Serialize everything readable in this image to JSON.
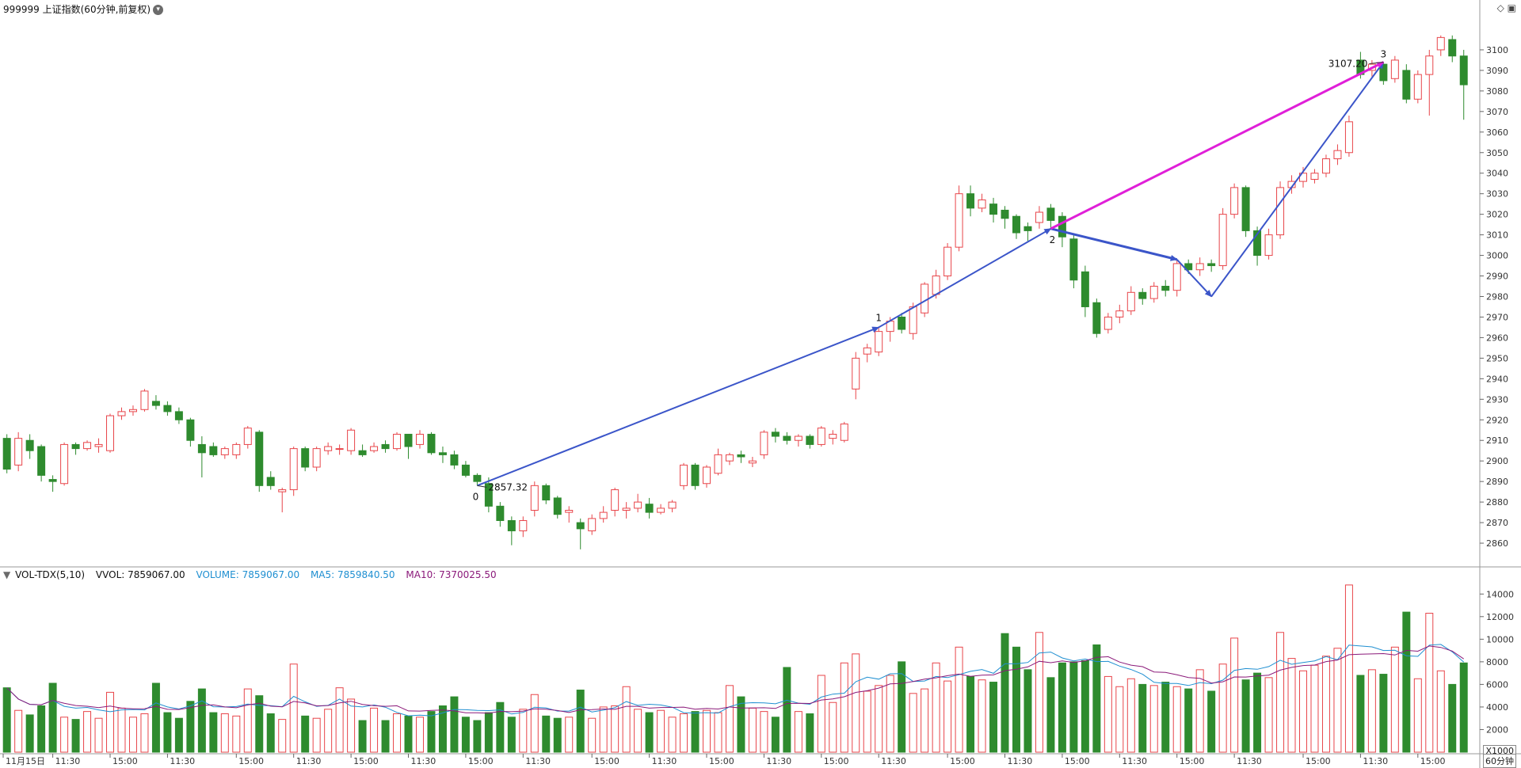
{
  "header": {
    "title": "999999 上证指数(60分钟,前复权)",
    "menu_icon": "chevron-down-icon",
    "tool_icons": [
      "diamond-icon",
      "panel-icon"
    ]
  },
  "volume_header": {
    "indicator": "VOL-TDX(5,10)",
    "vvol": "VVOL: 7859067.00",
    "volume": "VOLUME: 7859067.00",
    "ma5": "MA5: 7859840.50",
    "ma10": "MA10: 7370025.50"
  },
  "colors": {
    "up": "#e8454a",
    "down": "#2e8b2e",
    "wave": "#3b55c9",
    "channel": "#e01fd8",
    "ma5": "#1f8fd1",
    "ma10": "#8b1a7a",
    "grid": "#d8d8d8",
    "axis_text": "#333333"
  },
  "chart_data": {
    "type": "candlestick",
    "price_ylim": [
      2850,
      3115
    ],
    "price_ticks": [
      2860,
      2870,
      2880,
      2890,
      2900,
      2910,
      2920,
      2930,
      2940,
      2950,
      2960,
      2970,
      2980,
      2990,
      3000,
      3010,
      3020,
      3030,
      3040,
      3050,
      3060,
      3070,
      3080,
      3090,
      3100
    ],
    "volume_ylim": [
      0,
      15000
    ],
    "volume_ticks": [
      2000,
      4000,
      6000,
      8000,
      10000,
      12000,
      14000
    ],
    "volume_unit": "X1000",
    "period_label": "60分钟",
    "x_labels": [
      "11月15日",
      "11:30",
      "15:00",
      "11:30",
      "15:00",
      "11:30",
      "15:00",
      "11:30",
      "15:00",
      "11:30",
      "15:00",
      "11:30",
      "15:00",
      "11:30",
      "15:00",
      "11:30",
      "15:00",
      "11:30",
      "15:00",
      "11:30",
      "15:00",
      "11:30",
      "15:00",
      "11:30",
      "15:00"
    ],
    "annotations": [
      {
        "label": "0",
        "value": "2857.32",
        "bar": 41
      },
      {
        "label": "1",
        "bar": 76
      },
      {
        "label": "2",
        "bar": 91
      },
      {
        "label": "3",
        "value": "3107.20",
        "bar": 120
      }
    ],
    "candles": [
      {
        "o": 2911,
        "c": 2896,
        "h": 2913,
        "l": 2894,
        "v": 5700
      },
      {
        "o": 2898,
        "c": 2911,
        "h": 2914,
        "l": 2895,
        "v": 3700
      },
      {
        "o": 2910,
        "c": 2905,
        "h": 2913,
        "l": 2901,
        "v": 3300
      },
      {
        "o": 2907,
        "c": 2893,
        "h": 2908,
        "l": 2890,
        "v": 4100
      },
      {
        "o": 2891,
        "c": 2890,
        "h": 2893,
        "l": 2885,
        "v": 6100
      },
      {
        "o": 2889,
        "c": 2908,
        "h": 2909,
        "l": 2888,
        "v": 3100
      },
      {
        "o": 2908,
        "c": 2906,
        "h": 2909,
        "l": 2903,
        "v": 2900
      },
      {
        "o": 2906,
        "c": 2909,
        "h": 2910,
        "l": 2905,
        "v": 3600
      },
      {
        "o": 2907,
        "c": 2908,
        "h": 2911,
        "l": 2904,
        "v": 3000
      },
      {
        "o": 2905,
        "c": 2922,
        "h": 2923,
        "l": 2904,
        "v": 5300
      },
      {
        "o": 2922,
        "c": 2924,
        "h": 2926,
        "l": 2920,
        "v": 3900
      },
      {
        "o": 2924,
        "c": 2925,
        "h": 2927,
        "l": 2922,
        "v": 3100
      },
      {
        "o": 2925,
        "c": 2934,
        "h": 2935,
        "l": 2924,
        "v": 3400
      },
      {
        "o": 2929,
        "c": 2927,
        "h": 2932,
        "l": 2925,
        "v": 6100
      },
      {
        "o": 2927,
        "c": 2924,
        "h": 2929,
        "l": 2922,
        "v": 3500
      },
      {
        "o": 2924,
        "c": 2920,
        "h": 2926,
        "l": 2918,
        "v": 3000
      },
      {
        "o": 2920,
        "c": 2910,
        "h": 2921,
        "l": 2907,
        "v": 4500
      },
      {
        "o": 2908,
        "c": 2904,
        "h": 2912,
        "l": 2892,
        "v": 5600
      },
      {
        "o": 2907,
        "c": 2903,
        "h": 2909,
        "l": 2902,
        "v": 3500
      },
      {
        "o": 2903,
        "c": 2906,
        "h": 2907,
        "l": 2901,
        "v": 3400
      },
      {
        "o": 2903,
        "c": 2908,
        "h": 2909,
        "l": 2901,
        "v": 3200
      },
      {
        "o": 2908,
        "c": 2916,
        "h": 2917,
        "l": 2906,
        "v": 5600
      },
      {
        "o": 2914,
        "c": 2888,
        "h": 2915,
        "l": 2885,
        "v": 5000
      },
      {
        "o": 2892,
        "c": 2888,
        "h": 2895,
        "l": 2886,
        "v": 3400
      },
      {
        "o": 2885,
        "c": 2886,
        "h": 2887,
        "l": 2875,
        "v": 2900
      },
      {
        "o": 2886,
        "c": 2906,
        "h": 2907,
        "l": 2883,
        "v": 7800
      },
      {
        "o": 2906,
        "c": 2897,
        "h": 2907,
        "l": 2895,
        "v": 3200
      },
      {
        "o": 2897,
        "c": 2906,
        "h": 2907,
        "l": 2895,
        "v": 3000
      },
      {
        "o": 2905,
        "c": 2907,
        "h": 2909,
        "l": 2903,
        "v": 3800
      },
      {
        "o": 2906,
        "c": 2906,
        "h": 2908,
        "l": 2903,
        "v": 5700
      },
      {
        "o": 2905,
        "c": 2915,
        "h": 2916,
        "l": 2903,
        "v": 4700
      },
      {
        "o": 2905,
        "c": 2903,
        "h": 2908,
        "l": 2902,
        "v": 2800
      },
      {
        "o": 2905,
        "c": 2907,
        "h": 2909,
        "l": 2904,
        "v": 3900
      },
      {
        "o": 2908,
        "c": 2906,
        "h": 2910,
        "l": 2904,
        "v": 2800
      },
      {
        "o": 2906,
        "c": 2913,
        "h": 2914,
        "l": 2905,
        "v": 3400
      },
      {
        "o": 2913,
        "c": 2907,
        "h": 2913,
        "l": 2901,
        "v": 3200
      },
      {
        "o": 2908,
        "c": 2913,
        "h": 2915,
        "l": 2906,
        "v": 3100
      },
      {
        "o": 2913,
        "c": 2904,
        "h": 2914,
        "l": 2903,
        "v": 3600
      },
      {
        "o": 2904,
        "c": 2903,
        "h": 2907,
        "l": 2899,
        "v": 4100
      },
      {
        "o": 2903,
        "c": 2898,
        "h": 2905,
        "l": 2896,
        "v": 4900
      },
      {
        "o": 2898,
        "c": 2893,
        "h": 2900,
        "l": 2892,
        "v": 3100
      },
      {
        "o": 2893,
        "c": 2890,
        "h": 2894,
        "l": 2888,
        "v": 2800
      },
      {
        "o": 2889,
        "c": 2878,
        "h": 2892,
        "l": 2875,
        "v": 3500
      },
      {
        "o": 2878,
        "c": 2871,
        "h": 2880,
        "l": 2868,
        "v": 4400
      },
      {
        "o": 2871,
        "c": 2866,
        "h": 2873,
        "l": 2859,
        "v": 3100
      },
      {
        "o": 2866,
        "c": 2871,
        "h": 2873,
        "l": 2863,
        "v": 3800
      },
      {
        "o": 2876,
        "c": 2888,
        "h": 2890,
        "l": 2873,
        "v": 5100
      },
      {
        "o": 2888,
        "c": 2881,
        "h": 2889,
        "l": 2879,
        "v": 3200
      },
      {
        "o": 2882,
        "c": 2874,
        "h": 2883,
        "l": 2872,
        "v": 3000
      },
      {
        "o": 2875,
        "c": 2876,
        "h": 2878,
        "l": 2870,
        "v": 3100
      },
      {
        "o": 2870,
        "c": 2867,
        "h": 2872,
        "l": 2857,
        "v": 5500
      },
      {
        "o": 2866,
        "c": 2872,
        "h": 2874,
        "l": 2864,
        "v": 3000
      },
      {
        "o": 2872,
        "c": 2875,
        "h": 2878,
        "l": 2870,
        "v": 4000
      },
      {
        "o": 2876,
        "c": 2886,
        "h": 2887,
        "l": 2873,
        "v": 4100
      },
      {
        "o": 2876,
        "c": 2877,
        "h": 2880,
        "l": 2872,
        "v": 5800
      },
      {
        "o": 2877,
        "c": 2880,
        "h": 2884,
        "l": 2875,
        "v": 3800
      },
      {
        "o": 2879,
        "c": 2875,
        "h": 2882,
        "l": 2872,
        "v": 3500
      },
      {
        "o": 2875,
        "c": 2877,
        "h": 2879,
        "l": 2874,
        "v": 3700
      },
      {
        "o": 2877,
        "c": 2880,
        "h": 2881,
        "l": 2875,
        "v": 3100
      },
      {
        "o": 2888,
        "c": 2898,
        "h": 2899,
        "l": 2886,
        "v": 3400
      },
      {
        "o": 2898,
        "c": 2888,
        "h": 2899,
        "l": 2886,
        "v": 3600
      },
      {
        "o": 2889,
        "c": 2897,
        "h": 2898,
        "l": 2887,
        "v": 3700
      },
      {
        "o": 2894,
        "c": 2903,
        "h": 2906,
        "l": 2893,
        "v": 3500
      },
      {
        "o": 2900,
        "c": 2903,
        "h": 2904,
        "l": 2898,
        "v": 5900
      },
      {
        "o": 2903,
        "c": 2902,
        "h": 2905,
        "l": 2899,
        "v": 4900
      },
      {
        "o": 2899,
        "c": 2900,
        "h": 2902,
        "l": 2897,
        "v": 3900
      },
      {
        "o": 2903,
        "c": 2914,
        "h": 2915,
        "l": 2901,
        "v": 3600
      },
      {
        "o": 2914,
        "c": 2912,
        "h": 2916,
        "l": 2909,
        "v": 3100
      },
      {
        "o": 2912,
        "c": 2910,
        "h": 2914,
        "l": 2908,
        "v": 7500
      },
      {
        "o": 2910,
        "c": 2912,
        "h": 2913,
        "l": 2907,
        "v": 3600
      },
      {
        "o": 2912,
        "c": 2908,
        "h": 2913,
        "l": 2906,
        "v": 3400
      },
      {
        "o": 2908,
        "c": 2916,
        "h": 2917,
        "l": 2907,
        "v": 6800
      },
      {
        "o": 2911,
        "c": 2913,
        "h": 2915,
        "l": 2908,
        "v": 4400
      },
      {
        "o": 2910,
        "c": 2918,
        "h": 2919,
        "l": 2909,
        "v": 7900
      },
      {
        "o": 2935,
        "c": 2950,
        "h": 2953,
        "l": 2930,
        "v": 8700
      },
      {
        "o": 2952,
        "c": 2955,
        "h": 2957,
        "l": 2948,
        "v": 5400
      },
      {
        "o": 2953,
        "c": 2963,
        "h": 2965,
        "l": 2951,
        "v": 5900
      },
      {
        "o": 2963,
        "c": 2968,
        "h": 2970,
        "l": 2958,
        "v": 6800
      },
      {
        "o": 2970,
        "c": 2964,
        "h": 2972,
        "l": 2962,
        "v": 8000
      },
      {
        "o": 2962,
        "c": 2975,
        "h": 2977,
        "l": 2959,
        "v": 5200
      },
      {
        "o": 2972,
        "c": 2986,
        "h": 2987,
        "l": 2970,
        "v": 5600
      },
      {
        "o": 2981,
        "c": 2990,
        "h": 2993,
        "l": 2979,
        "v": 7900
      },
      {
        "o": 2990,
        "c": 3004,
        "h": 3006,
        "l": 2988,
        "v": 6300
      },
      {
        "o": 3004,
        "c": 3030,
        "h": 3034,
        "l": 3002,
        "v": 9300
      },
      {
        "o": 3030,
        "c": 3023,
        "h": 3034,
        "l": 3019,
        "v": 6700
      },
      {
        "o": 3023,
        "c": 3027,
        "h": 3030,
        "l": 3021,
        "v": 6400
      },
      {
        "o": 3025,
        "c": 3020,
        "h": 3028,
        "l": 3016,
        "v": 6200
      },
      {
        "o": 3022,
        "c": 3018,
        "h": 3024,
        "l": 3013,
        "v": 10500
      },
      {
        "o": 3019,
        "c": 3011,
        "h": 3020,
        "l": 3008,
        "v": 9300
      },
      {
        "o": 3014,
        "c": 3012,
        "h": 3016,
        "l": 3007,
        "v": 7300
      },
      {
        "o": 3016,
        "c": 3021,
        "h": 3024,
        "l": 3013,
        "v": 10600
      },
      {
        "o": 3023,
        "c": 3017,
        "h": 3025,
        "l": 3013,
        "v": 6600
      },
      {
        "o": 3019,
        "c": 3009,
        "h": 3021,
        "l": 3004,
        "v": 7900
      },
      {
        "o": 3008,
        "c": 2988,
        "h": 3010,
        "l": 2984,
        "v": 8000
      },
      {
        "o": 2992,
        "c": 2975,
        "h": 2995,
        "l": 2970,
        "v": 8100
      },
      {
        "o": 2977,
        "c": 2962,
        "h": 2979,
        "l": 2960,
        "v": 9500
      },
      {
        "o": 2964,
        "c": 2970,
        "h": 2972,
        "l": 2962,
        "v": 6700
      },
      {
        "o": 2970,
        "c": 2973,
        "h": 2976,
        "l": 2967,
        "v": 5800
      },
      {
        "o": 2973,
        "c": 2982,
        "h": 2985,
        "l": 2971,
        "v": 6500
      },
      {
        "o": 2982,
        "c": 2979,
        "h": 2984,
        "l": 2976,
        "v": 6000
      },
      {
        "o": 2979,
        "c": 2985,
        "h": 2987,
        "l": 2977,
        "v": 5900
      },
      {
        "o": 2985,
        "c": 2983,
        "h": 2988,
        "l": 2980,
        "v": 6200
      },
      {
        "o": 2983,
        "c": 2996,
        "h": 2998,
        "l": 2980,
        "v": 5800
      },
      {
        "o": 2996,
        "c": 2993,
        "h": 2998,
        "l": 2991,
        "v": 5600
      },
      {
        "o": 2993,
        "c": 2996,
        "h": 2999,
        "l": 2990,
        "v": 7300
      },
      {
        "o": 2996,
        "c": 2995,
        "h": 2998,
        "l": 2992,
        "v": 5400
      },
      {
        "o": 2995,
        "c": 3020,
        "h": 3023,
        "l": 2993,
        "v": 7800
      },
      {
        "o": 3020,
        "c": 3033,
        "h": 3035,
        "l": 3018,
        "v": 10100
      },
      {
        "o": 3033,
        "c": 3012,
        "h": 3034,
        "l": 3009,
        "v": 6400
      },
      {
        "o": 3012,
        "c": 3000,
        "h": 3014,
        "l": 2995,
        "v": 7000
      },
      {
        "o": 3000,
        "c": 3010,
        "h": 3013,
        "l": 2998,
        "v": 6600
      },
      {
        "o": 3010,
        "c": 3033,
        "h": 3036,
        "l": 3008,
        "v": 10600
      },
      {
        "o": 3033,
        "c": 3036,
        "h": 3039,
        "l": 3030,
        "v": 8300
      },
      {
        "o": 3036,
        "c": 3040,
        "h": 3043,
        "l": 3033,
        "v": 7200
      },
      {
        "o": 3037,
        "c": 3040,
        "h": 3042,
        "l": 3035,
        "v": 7700
      },
      {
        "o": 3040,
        "c": 3047,
        "h": 3049,
        "l": 3038,
        "v": 8500
      },
      {
        "o": 3047,
        "c": 3051,
        "h": 3054,
        "l": 3044,
        "v": 9200
      },
      {
        "o": 3050,
        "c": 3065,
        "h": 3068,
        "l": 3048,
        "v": 14800
      },
      {
        "o": 3095,
        "c": 3088,
        "h": 3099,
        "l": 3086,
        "v": 6800
      },
      {
        "o": 3090,
        "c": 3093,
        "h": 3095,
        "l": 3087,
        "v": 7300
      },
      {
        "o": 3093,
        "c": 3085,
        "h": 3094,
        "l": 3083,
        "v": 6900
      },
      {
        "o": 3086,
        "c": 3095,
        "h": 3097,
        "l": 3084,
        "v": 9300
      },
      {
        "o": 3090,
        "c": 3076,
        "h": 3093,
        "l": 3074,
        "v": 12400
      },
      {
        "o": 3076,
        "c": 3088,
        "h": 3090,
        "l": 3074,
        "v": 6500
      },
      {
        "o": 3088,
        "c": 3097,
        "h": 3100,
        "l": 3068,
        "v": 12300
      },
      {
        "o": 3100,
        "c": 3106,
        "h": 3107,
        "l": 3097,
        "v": 7200
      },
      {
        "o": 3105,
        "c": 3097,
        "h": 3107,
        "l": 3094,
        "v": 6000
      },
      {
        "o": 3097,
        "c": 3083,
        "h": 3100,
        "l": 3066,
        "v": 7900
      }
    ]
  }
}
